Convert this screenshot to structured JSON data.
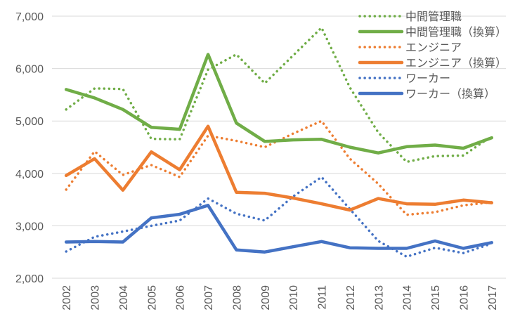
{
  "chart_data": {
    "type": "line",
    "title": "",
    "xlabel": "",
    "ylabel": "",
    "x": [
      "2002",
      "2003",
      "2004",
      "2005",
      "2006",
      "2007",
      "2008",
      "2009",
      "2010",
      "2011",
      "2012",
      "2013",
      "2014",
      "2015",
      "2016",
      "2017"
    ],
    "ylim": [
      2000,
      7000
    ],
    "yticks": [
      2000,
      3000,
      4000,
      5000,
      6000,
      7000
    ],
    "ytick_labels": [
      "2,000",
      "3,000",
      "4,000",
      "5,000",
      "6,000",
      "7,000"
    ],
    "grid": "horizontal",
    "legend_position": "top-right",
    "series": [
      {
        "name": "中間管理職",
        "color": "#70ad47",
        "style": "dotted",
        "values": [
          5220,
          5620,
          5610,
          4660,
          4650,
          5980,
          6270,
          5720,
          null,
          6780,
          5640,
          4780,
          4220,
          4330,
          4340,
          4710
        ]
      },
      {
        "name": "中間管理職（換算）",
        "color": "#70ad47",
        "style": "solid",
        "values": [
          5600,
          5440,
          5220,
          4880,
          4840,
          6270,
          4960,
          4610,
          4640,
          4650,
          4500,
          4390,
          4510,
          4540,
          4480,
          4680
        ]
      },
      {
        "name": "エンジニア",
        "color": "#ed7d31",
        "style": "dotted",
        "values": [
          3690,
          4420,
          3970,
          4160,
          3930,
          4720,
          4620,
          4500,
          4760,
          5000,
          4280,
          3800,
          3210,
          3260,
          3390,
          3450
        ]
      },
      {
        "name": "エンジニア（換算）",
        "color": "#ed7d31",
        "style": "solid",
        "values": [
          3960,
          4280,
          3680,
          4410,
          4070,
          4900,
          3640,
          3620,
          3530,
          3420,
          3300,
          3520,
          3420,
          3410,
          3490,
          3440
        ]
      },
      {
        "name": "ワーカー",
        "color": "#4472c4",
        "style": "dotted",
        "values": [
          2510,
          2790,
          2890,
          3000,
          3100,
          3520,
          3230,
          3100,
          3560,
          3930,
          3320,
          2710,
          2410,
          2580,
          2480,
          2660
        ]
      },
      {
        "name": "ワーカー（換算）",
        "color": "#4472c4",
        "style": "solid",
        "values": [
          2690,
          2700,
          2690,
          3150,
          3220,
          3390,
          2540,
          2500,
          2600,
          2700,
          2580,
          2570,
          2570,
          2710,
          2570,
          2680
        ]
      }
    ]
  }
}
